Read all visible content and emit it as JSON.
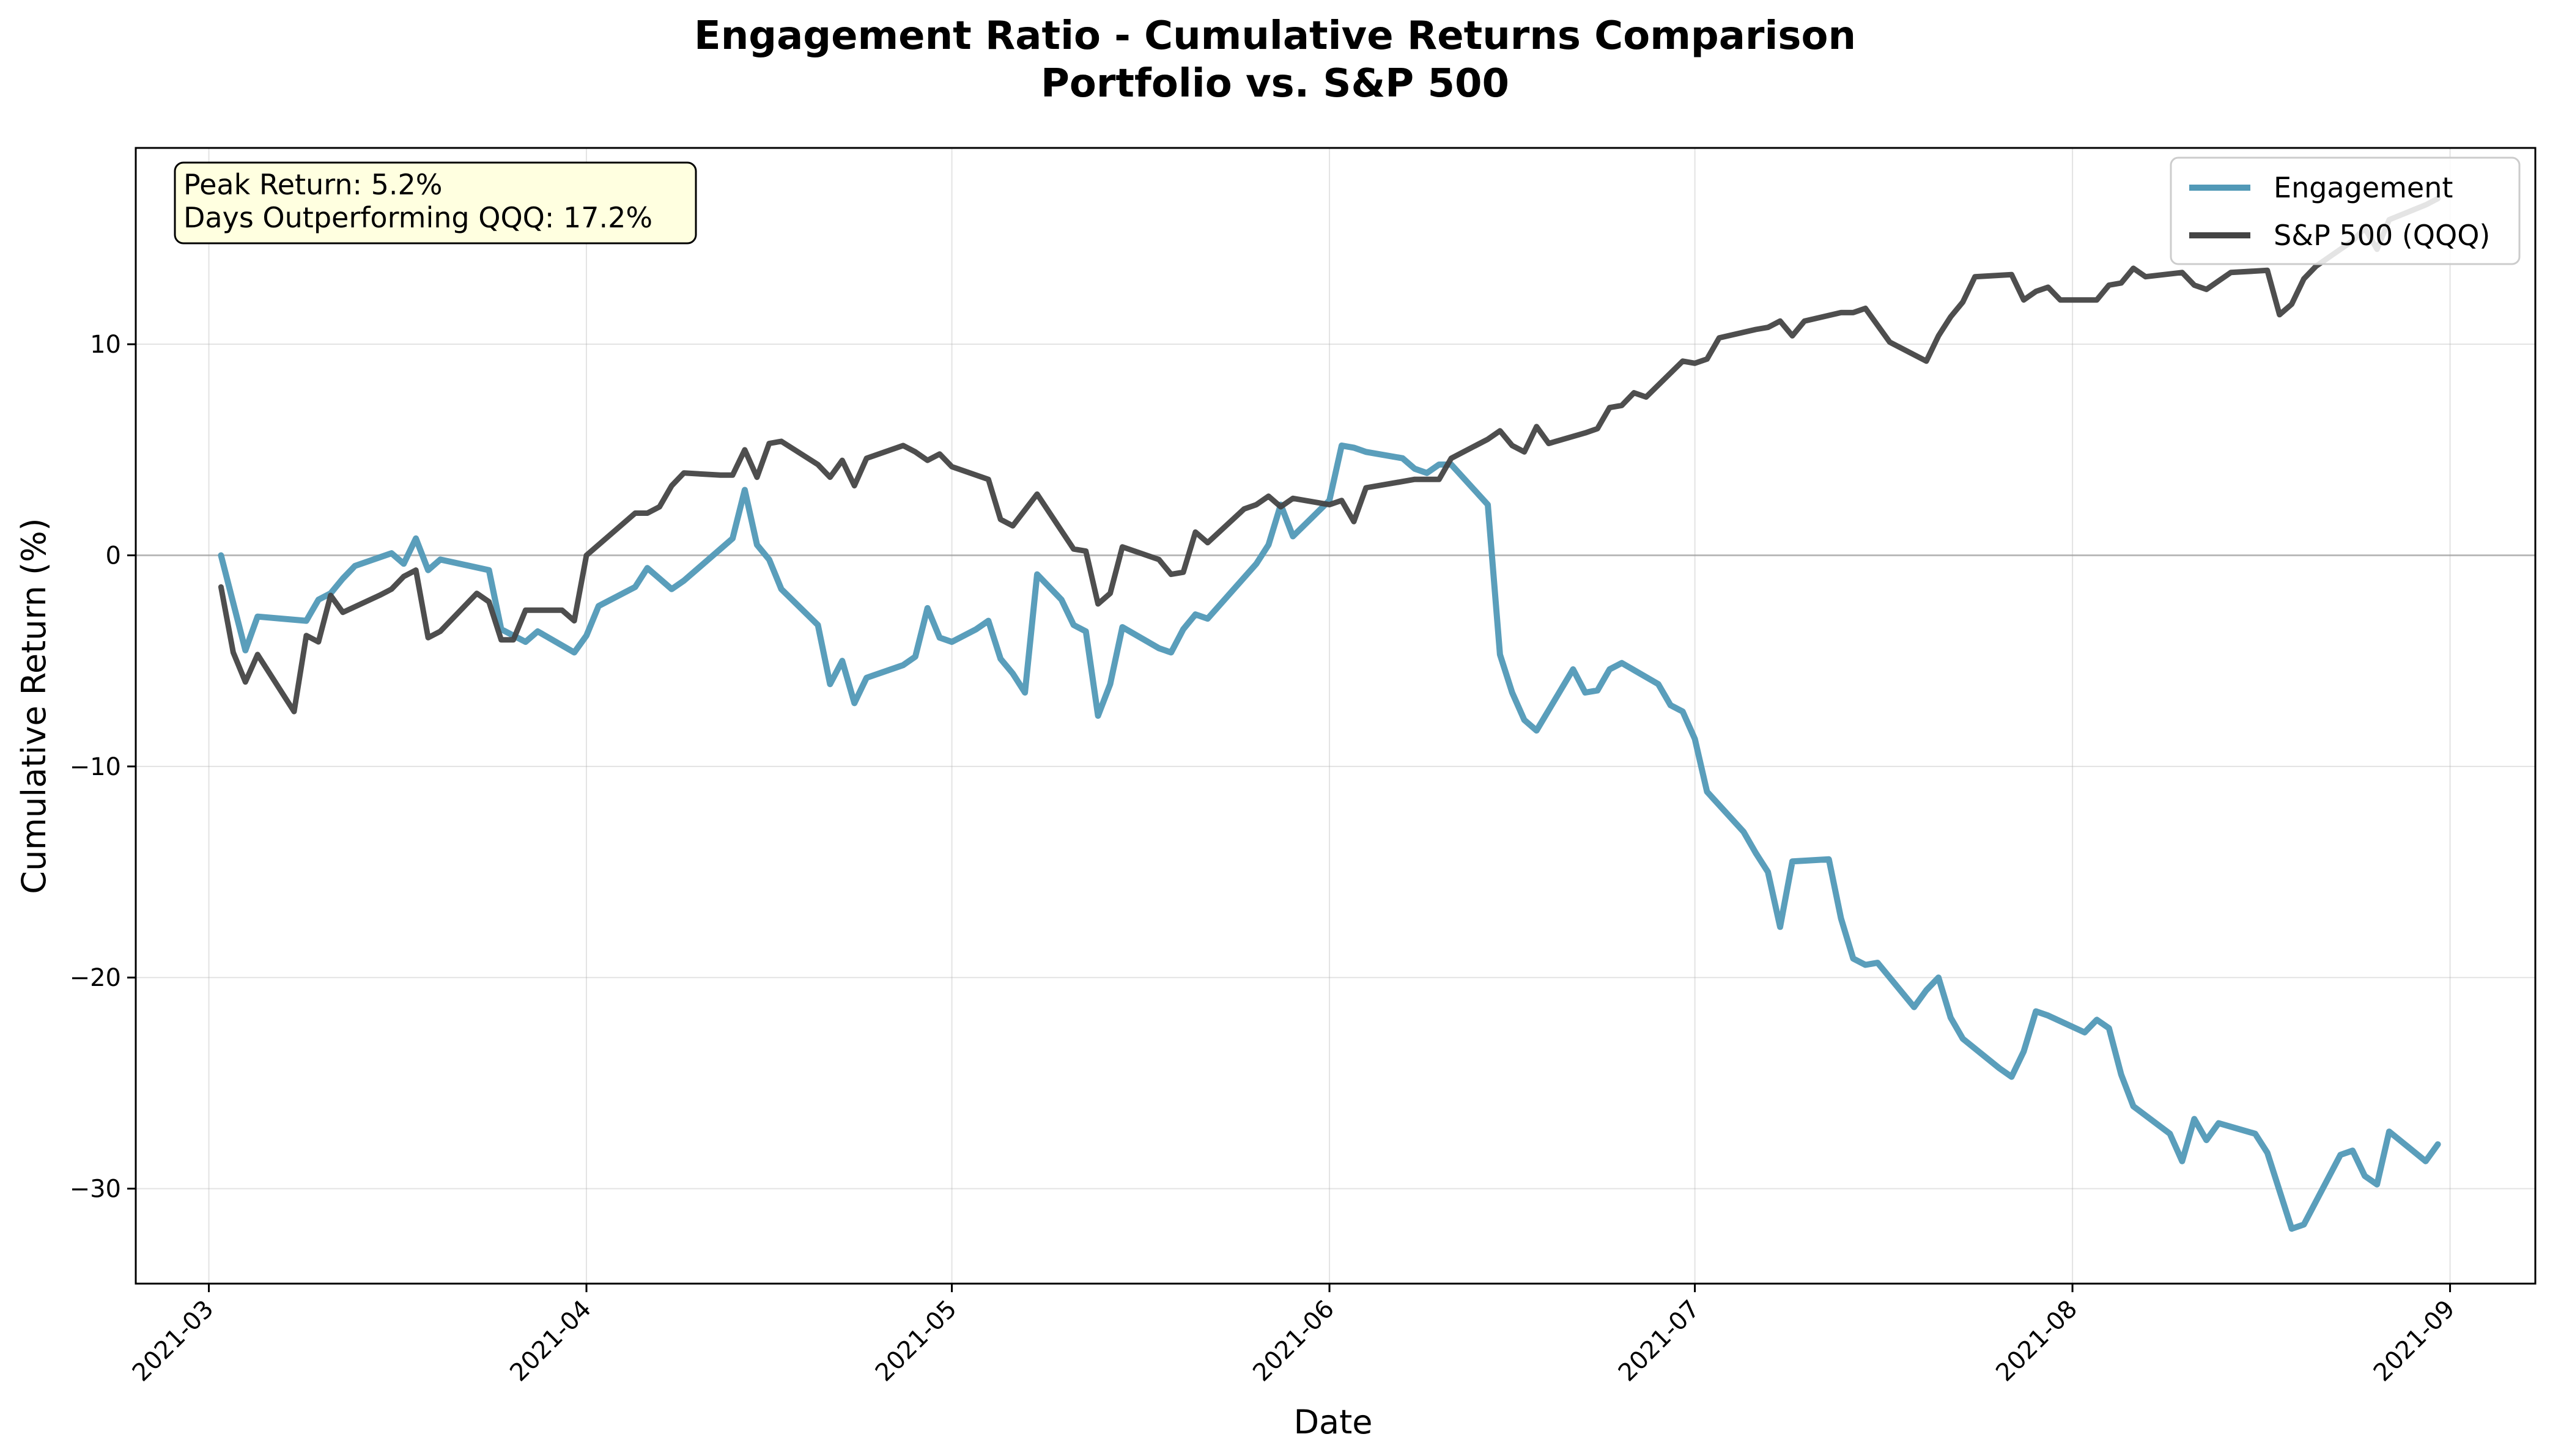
{
  "chart_data": {
    "type": "line",
    "title": "Engagement Ratio - Cumulative Returns Comparison",
    "subtitle": "Portfolio vs. S&P 500",
    "xlabel": "Date",
    "ylabel": "Cumulative Return (%)",
    "xlim": [
      "2021-02-23",
      "2021-09-08"
    ],
    "ylim": [
      -34.5,
      19.3
    ],
    "x_ticks": [
      "2021-03-01",
      "2021-04-01",
      "2021-05-01",
      "2021-06-01",
      "2021-07-01",
      "2021-08-01",
      "2021-09-01"
    ],
    "x_tick_labels": [
      "2021-03",
      "2021-04",
      "2021-05",
      "2021-06",
      "2021-07",
      "2021-08",
      "2021-09"
    ],
    "y_ticks": [
      -30,
      -20,
      -10,
      0,
      10
    ],
    "y_tick_labels": [
      "−30",
      "−20",
      "−10",
      "0",
      "10"
    ],
    "grid": true,
    "zero_line": true,
    "legend_position": "top-right",
    "annotation": {
      "line1": "Peak Return: 5.2%",
      "line2": "Days Outperforming QQQ: 17.2%"
    },
    "series": [
      {
        "name": "Engagement",
        "color": "#5199b7",
        "points": [
          [
            "2021-03-02",
            0.0
          ],
          [
            "2021-03-04",
            -4.5
          ],
          [
            "2021-03-05",
            -2.9
          ],
          [
            "2021-03-09",
            -3.1
          ],
          [
            "2021-03-10",
            -2.1
          ],
          [
            "2021-03-11",
            -1.8
          ],
          [
            "2021-03-12",
            -1.1
          ],
          [
            "2021-03-13",
            -0.5
          ],
          [
            "2021-03-16",
            0.1
          ],
          [
            "2021-03-17",
            -0.4
          ],
          [
            "2021-03-18",
            0.8
          ],
          [
            "2021-03-19",
            -0.7
          ],
          [
            "2021-03-20",
            -0.2
          ],
          [
            "2021-03-24",
            -0.7
          ],
          [
            "2021-03-25",
            -3.5
          ],
          [
            "2021-03-27",
            -4.1
          ],
          [
            "2021-03-28",
            -3.6
          ],
          [
            "2021-03-31",
            -4.6
          ],
          [
            "2021-04-01",
            -3.8
          ],
          [
            "2021-04-02",
            -2.4
          ],
          [
            "2021-04-05",
            -1.5
          ],
          [
            "2021-04-06",
            -0.6
          ],
          [
            "2021-04-07",
            -1.1
          ],
          [
            "2021-04-08",
            -1.6
          ],
          [
            "2021-04-09",
            -1.2
          ],
          [
            "2021-04-10",
            -0.7
          ],
          [
            "2021-04-13",
            0.8
          ],
          [
            "2021-04-14",
            3.1
          ],
          [
            "2021-04-15",
            0.5
          ],
          [
            "2021-04-16",
            -0.2
          ],
          [
            "2021-04-17",
            -1.6
          ],
          [
            "2021-04-20",
            -3.3
          ],
          [
            "2021-04-21",
            -6.1
          ],
          [
            "2021-04-22",
            -5.0
          ],
          [
            "2021-04-23",
            -7.0
          ],
          [
            "2021-04-24",
            -5.8
          ],
          [
            "2021-04-27",
            -5.2
          ],
          [
            "2021-04-28",
            -4.8
          ],
          [
            "2021-04-29",
            -2.5
          ],
          [
            "2021-04-30",
            -3.9
          ],
          [
            "2021-05-01",
            -4.1
          ],
          [
            "2021-05-03",
            -3.5
          ],
          [
            "2021-05-04",
            -3.1
          ],
          [
            "2021-05-05",
            -4.9
          ],
          [
            "2021-05-06",
            -5.6
          ],
          [
            "2021-05-07",
            -6.5
          ],
          [
            "2021-05-08",
            -0.9
          ],
          [
            "2021-05-10",
            -2.1
          ],
          [
            "2021-05-11",
            -3.3
          ],
          [
            "2021-05-12",
            -3.6
          ],
          [
            "2021-05-13",
            -7.6
          ],
          [
            "2021-05-14",
            -6.1
          ],
          [
            "2021-05-15",
            -3.4
          ],
          [
            "2021-05-18",
            -4.4
          ],
          [
            "2021-05-19",
            -4.6
          ],
          [
            "2021-05-20",
            -3.5
          ],
          [
            "2021-05-21",
            -2.8
          ],
          [
            "2021-05-22",
            -3.0
          ],
          [
            "2021-05-26",
            -0.4
          ],
          [
            "2021-05-27",
            0.5
          ],
          [
            "2021-05-28",
            2.4
          ],
          [
            "2021-05-29",
            0.9
          ],
          [
            "2021-06-01",
            2.6
          ],
          [
            "2021-06-02",
            5.2
          ],
          [
            "2021-06-03",
            5.1
          ],
          [
            "2021-06-04",
            4.9
          ],
          [
            "2021-06-07",
            4.6
          ],
          [
            "2021-06-08",
            4.1
          ],
          [
            "2021-06-09",
            3.9
          ],
          [
            "2021-06-10",
            4.3
          ],
          [
            "2021-06-11",
            4.3
          ],
          [
            "2021-06-14",
            2.4
          ],
          [
            "2021-06-15",
            -4.7
          ],
          [
            "2021-06-16",
            -6.5
          ],
          [
            "2021-06-17",
            -7.8
          ],
          [
            "2021-06-18",
            -8.3
          ],
          [
            "2021-06-21",
            -5.4
          ],
          [
            "2021-06-22",
            -6.5
          ],
          [
            "2021-06-23",
            -6.4
          ],
          [
            "2021-06-24",
            -5.4
          ],
          [
            "2021-06-25",
            -5.1
          ],
          [
            "2021-06-28",
            -6.1
          ],
          [
            "2021-06-29",
            -7.1
          ],
          [
            "2021-06-30",
            -7.4
          ],
          [
            "2021-07-01",
            -8.7
          ],
          [
            "2021-07-02",
            -11.2
          ],
          [
            "2021-07-05",
            -13.1
          ],
          [
            "2021-07-06",
            -14.1
          ],
          [
            "2021-07-07",
            -15.0
          ],
          [
            "2021-07-08",
            -17.6
          ],
          [
            "2021-07-09",
            -14.5
          ],
          [
            "2021-07-12",
            -14.4
          ],
          [
            "2021-07-13",
            -17.2
          ],
          [
            "2021-07-14",
            -19.1
          ],
          [
            "2021-07-15",
            -19.4
          ],
          [
            "2021-07-16",
            -19.3
          ],
          [
            "2021-07-19",
            -21.4
          ],
          [
            "2021-07-20",
            -20.6
          ],
          [
            "2021-07-21",
            -20.0
          ],
          [
            "2021-07-22",
            -21.9
          ],
          [
            "2021-07-23",
            -22.9
          ],
          [
            "2021-07-26",
            -24.3
          ],
          [
            "2021-07-27",
            -24.7
          ],
          [
            "2021-07-28",
            -23.5
          ],
          [
            "2021-07-29",
            -21.6
          ],
          [
            "2021-07-30",
            -21.8
          ],
          [
            "2021-08-02",
            -22.6
          ],
          [
            "2021-08-03",
            -22.0
          ],
          [
            "2021-08-04",
            -22.4
          ],
          [
            "2021-08-05",
            -24.6
          ],
          [
            "2021-08-06",
            -26.1
          ],
          [
            "2021-08-09",
            -27.4
          ],
          [
            "2021-08-10",
            -28.7
          ],
          [
            "2021-08-11",
            -26.7
          ],
          [
            "2021-08-12",
            -27.7
          ],
          [
            "2021-08-13",
            -26.9
          ],
          [
            "2021-08-16",
            -27.4
          ],
          [
            "2021-08-17",
            -28.3
          ],
          [
            "2021-08-19",
            -31.9
          ],
          [
            "2021-08-20",
            -31.7
          ],
          [
            "2021-08-23",
            -28.4
          ],
          [
            "2021-08-24",
            -28.2
          ],
          [
            "2021-08-25",
            -29.4
          ],
          [
            "2021-08-26",
            -29.8
          ],
          [
            "2021-08-27",
            -27.3
          ],
          [
            "2021-08-30",
            -28.7
          ],
          [
            "2021-08-31",
            -27.9
          ]
        ]
      },
      {
        "name": "S&P 500 (QQQ)",
        "color": "#444444",
        "points": [
          [
            "2021-03-02",
            -1.5
          ],
          [
            "2021-03-03",
            -4.6
          ],
          [
            "2021-03-04",
            -6.0
          ],
          [
            "2021-03-05",
            -4.7
          ],
          [
            "2021-03-08",
            -7.4
          ],
          [
            "2021-03-09",
            -3.8
          ],
          [
            "2021-03-10",
            -4.1
          ],
          [
            "2021-03-11",
            -1.9
          ],
          [
            "2021-03-12",
            -2.7
          ],
          [
            "2021-03-15",
            -1.9
          ],
          [
            "2021-03-16",
            -1.6
          ],
          [
            "2021-03-17",
            -1.0
          ],
          [
            "2021-03-18",
            -0.7
          ],
          [
            "2021-03-19",
            -3.9
          ],
          [
            "2021-03-20",
            -3.6
          ],
          [
            "2021-03-23",
            -1.8
          ],
          [
            "2021-03-24",
            -2.2
          ],
          [
            "2021-03-25",
            -4.0
          ],
          [
            "2021-03-26",
            -4.0
          ],
          [
            "2021-03-27",
            -2.6
          ],
          [
            "2021-03-30",
            -2.6
          ],
          [
            "2021-03-31",
            -3.1
          ],
          [
            "2021-04-01",
            0.0
          ],
          [
            "2021-04-05",
            2.0
          ],
          [
            "2021-04-06",
            2.0
          ],
          [
            "2021-04-07",
            2.3
          ],
          [
            "2021-04-08",
            3.3
          ],
          [
            "2021-04-09",
            3.9
          ],
          [
            "2021-04-12",
            3.8
          ],
          [
            "2021-04-13",
            3.8
          ],
          [
            "2021-04-14",
            5.0
          ],
          [
            "2021-04-15",
            3.7
          ],
          [
            "2021-04-16",
            5.3
          ],
          [
            "2021-04-17",
            5.4
          ],
          [
            "2021-04-20",
            4.3
          ],
          [
            "2021-04-21",
            3.7
          ],
          [
            "2021-04-22",
            4.5
          ],
          [
            "2021-04-23",
            3.3
          ],
          [
            "2021-04-24",
            4.6
          ],
          [
            "2021-04-27",
            5.2
          ],
          [
            "2021-04-28",
            4.9
          ],
          [
            "2021-04-29",
            4.5
          ],
          [
            "2021-04-30",
            4.8
          ],
          [
            "2021-05-01",
            4.2
          ],
          [
            "2021-05-04",
            3.6
          ],
          [
            "2021-05-05",
            1.7
          ],
          [
            "2021-05-06",
            1.4
          ],
          [
            "2021-05-08",
            2.9
          ],
          [
            "2021-05-11",
            0.3
          ],
          [
            "2021-05-12",
            0.2
          ],
          [
            "2021-05-13",
            -2.3
          ],
          [
            "2021-05-14",
            -1.8
          ],
          [
            "2021-05-15",
            0.4
          ],
          [
            "2021-05-18",
            -0.2
          ],
          [
            "2021-05-19",
            -0.9
          ],
          [
            "2021-05-20",
            -0.8
          ],
          [
            "2021-05-21",
            1.1
          ],
          [
            "2021-05-22",
            0.6
          ],
          [
            "2021-05-25",
            2.2
          ],
          [
            "2021-05-26",
            2.4
          ],
          [
            "2021-05-27",
            2.8
          ],
          [
            "2021-05-28",
            2.3
          ],
          [
            "2021-05-29",
            2.7
          ],
          [
            "2021-06-01",
            2.4
          ],
          [
            "2021-06-02",
            2.6
          ],
          [
            "2021-06-03",
            1.6
          ],
          [
            "2021-06-04",
            3.2
          ],
          [
            "2021-06-07",
            3.5
          ],
          [
            "2021-06-08",
            3.6
          ],
          [
            "2021-06-10",
            3.6
          ],
          [
            "2021-06-11",
            4.6
          ],
          [
            "2021-06-14",
            5.5
          ],
          [
            "2021-06-15",
            5.9
          ],
          [
            "2021-06-16",
            5.2
          ],
          [
            "2021-06-17",
            4.9
          ],
          [
            "2021-06-18",
            6.1
          ],
          [
            "2021-06-19",
            5.3
          ],
          [
            "2021-06-22",
            5.8
          ],
          [
            "2021-06-23",
            6.0
          ],
          [
            "2021-06-24",
            7.0
          ],
          [
            "2021-06-25",
            7.1
          ],
          [
            "2021-06-26",
            7.7
          ],
          [
            "2021-06-27",
            7.5
          ],
          [
            "2021-06-30",
            9.2
          ],
          [
            "2021-07-01",
            9.1
          ],
          [
            "2021-07-02",
            9.3
          ],
          [
            "2021-07-03",
            10.3
          ],
          [
            "2021-07-06",
            10.7
          ],
          [
            "2021-07-07",
            10.8
          ],
          [
            "2021-07-08",
            11.1
          ],
          [
            "2021-07-09",
            10.4
          ],
          [
            "2021-07-10",
            11.1
          ],
          [
            "2021-07-13",
            11.5
          ],
          [
            "2021-07-14",
            11.5
          ],
          [
            "2021-07-15",
            11.7
          ],
          [
            "2021-07-16",
            10.9
          ],
          [
            "2021-07-17",
            10.1
          ],
          [
            "2021-07-20",
            9.2
          ],
          [
            "2021-07-21",
            10.4
          ],
          [
            "2021-07-22",
            11.3
          ],
          [
            "2021-07-23",
            12.0
          ],
          [
            "2021-07-24",
            13.2
          ],
          [
            "2021-07-27",
            13.3
          ],
          [
            "2021-07-28",
            12.1
          ],
          [
            "2021-07-29",
            12.5
          ],
          [
            "2021-07-30",
            12.7
          ],
          [
            "2021-07-31",
            12.1
          ],
          [
            "2021-08-03",
            12.1
          ],
          [
            "2021-08-04",
            12.8
          ],
          [
            "2021-08-05",
            12.9
          ],
          [
            "2021-08-06",
            13.6
          ],
          [
            "2021-08-07",
            13.2
          ],
          [
            "2021-08-10",
            13.4
          ],
          [
            "2021-08-11",
            12.8
          ],
          [
            "2021-08-12",
            12.6
          ],
          [
            "2021-08-13",
            13.0
          ],
          [
            "2021-08-14",
            13.4
          ],
          [
            "2021-08-17",
            13.5
          ],
          [
            "2021-08-18",
            11.4
          ],
          [
            "2021-08-19",
            11.9
          ],
          [
            "2021-08-20",
            13.1
          ],
          [
            "2021-08-21",
            13.7
          ],
          [
            "2021-08-24",
            14.9
          ],
          [
            "2021-08-25",
            15.5
          ],
          [
            "2021-08-26",
            14.5
          ],
          [
            "2021-08-27",
            15.9
          ],
          [
            "2021-08-30",
            16.6
          ],
          [
            "2021-08-31",
            16.9
          ]
        ]
      }
    ]
  }
}
